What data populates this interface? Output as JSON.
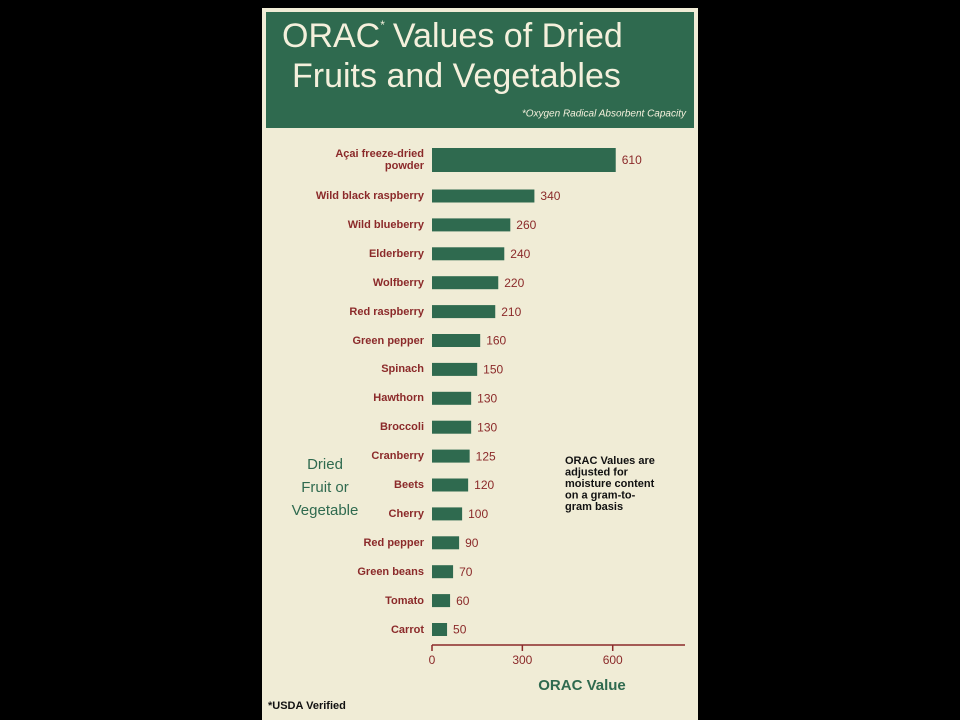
{
  "chart_data": {
    "type": "bar",
    "orientation": "horizontal",
    "title": [
      "ORAC",
      "*",
      "Values of Dried",
      "Fruits and Vegetables"
    ],
    "subtitle": "*Oxygen Radical Absorbent Capacity",
    "y_label": [
      "Dried",
      "Fruit or",
      "Vegetable"
    ],
    "x_label": "ORAC Value",
    "note": [
      "ORAC Values are",
      "adjusted for",
      "moisture content",
      "on a gram-to-",
      "gram basis"
    ],
    "footnote": "*USDA Verified",
    "categories": [
      "Açai freeze-dried\npowder",
      "Wild black raspberry",
      "Wild blueberry",
      "Elderberry",
      "Wolfberry",
      "Red raspberry",
      "Green pepper",
      "Spinach",
      "Hawthorn",
      "Broccoli",
      "Cranberry",
      "Beets",
      "Cherry",
      "Red pepper",
      "Green beans",
      "Tomato",
      "Carrot"
    ],
    "values": [
      610,
      340,
      260,
      240,
      220,
      210,
      160,
      150,
      130,
      130,
      125,
      120,
      100,
      90,
      70,
      60,
      50
    ],
    "color": "#2f6a4f",
    "xlim": [
      0,
      840
    ],
    "xticks": [
      0,
      300,
      600
    ]
  }
}
